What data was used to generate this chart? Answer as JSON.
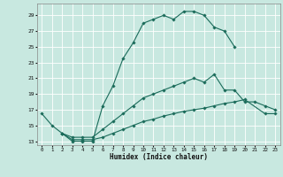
{
  "title": "",
  "xlabel": "Humidex (Indice chaleur)",
  "background_color": "#c8e8e0",
  "grid_color": "#ffffff",
  "line_color": "#1a6b5a",
  "xlim": [
    -0.5,
    23.5
  ],
  "ylim": [
    12.5,
    30.5
  ],
  "xticks": [
    0,
    1,
    2,
    3,
    4,
    5,
    6,
    7,
    8,
    9,
    10,
    11,
    12,
    13,
    14,
    15,
    16,
    17,
    18,
    19,
    20,
    21,
    22,
    23
  ],
  "yticks": [
    13,
    15,
    17,
    19,
    21,
    23,
    25,
    27,
    29
  ],
  "line0_x": [
    0,
    1,
    2,
    3,
    4,
    5,
    6,
    7,
    8,
    9,
    10,
    11,
    12,
    13,
    14,
    15,
    16,
    17,
    18,
    19
  ],
  "line0_y": [
    16.5,
    15.0,
    14.0,
    13.0,
    13.0,
    13.0,
    17.5,
    20.0,
    23.5,
    25.5,
    28.0,
    28.5,
    29.0,
    28.5,
    29.5,
    29.5,
    29.0,
    27.5,
    27.0,
    25.0
  ],
  "line1_x": [
    2,
    3,
    4,
    5,
    6,
    7,
    8,
    9,
    10,
    11,
    12,
    13,
    14,
    15,
    16,
    17,
    18,
    19,
    20,
    21,
    22,
    23
  ],
  "line1_y": [
    14.0,
    13.5,
    13.5,
    13.5,
    14.5,
    15.5,
    16.5,
    17.5,
    18.5,
    19.0,
    19.5,
    20.0,
    20.5,
    21.0,
    20.5,
    21.5,
    19.5,
    19.5,
    18.0,
    18.0,
    17.5,
    17.0
  ],
  "line2_x": [
    2,
    3,
    4,
    5,
    6,
    7,
    8,
    9,
    10,
    11,
    12,
    13,
    14,
    15,
    16,
    17,
    18,
    19,
    20,
    22,
    23
  ],
  "line2_y": [
    14.0,
    13.2,
    13.2,
    13.2,
    13.5,
    14.0,
    14.5,
    15.0,
    15.5,
    15.8,
    16.2,
    16.5,
    16.8,
    17.0,
    17.2,
    17.5,
    17.8,
    18.0,
    18.3,
    16.5,
    16.5
  ]
}
